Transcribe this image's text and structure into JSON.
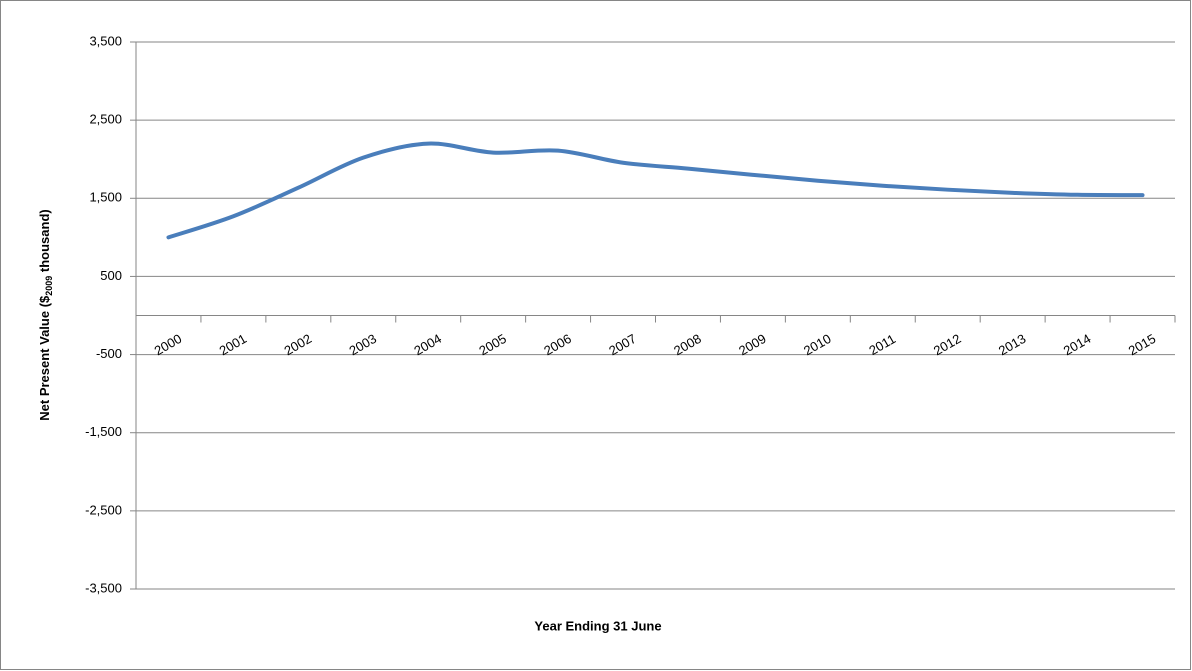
{
  "chart_data": {
    "type": "line",
    "categories": [
      "2000",
      "2001",
      "2002",
      "2003",
      "2004",
      "2005",
      "2006",
      "2007",
      "2008",
      "2009",
      "2010",
      "2011",
      "2012",
      "2013",
      "2014",
      "2015"
    ],
    "values": [
      1000,
      1270,
      1635,
      2020,
      2200,
      2085,
      2110,
      1955,
      1880,
      1800,
      1725,
      1660,
      1610,
      1570,
      1545,
      1540
    ],
    "color": "#4a7ebb",
    "ylim": [
      -3500,
      3500
    ],
    "yticks": [
      {
        "value": -3500,
        "label": "-3,500"
      },
      {
        "value": -2500,
        "label": "-2,500"
      },
      {
        "value": -1500,
        "label": "-1,500"
      },
      -500,
      500,
      {
        "value": 1500,
        "label": "1,500"
      },
      {
        "value": 2500,
        "label": "2,500"
      },
      {
        "value": 3500,
        "label": "3,500"
      }
    ],
    "grid": true,
    "xlabel": "Year Ending 31 June",
    "ylabel": {
      "before": "Net Present Value ($",
      "sub": "2009",
      "after": " thousand)"
    }
  }
}
